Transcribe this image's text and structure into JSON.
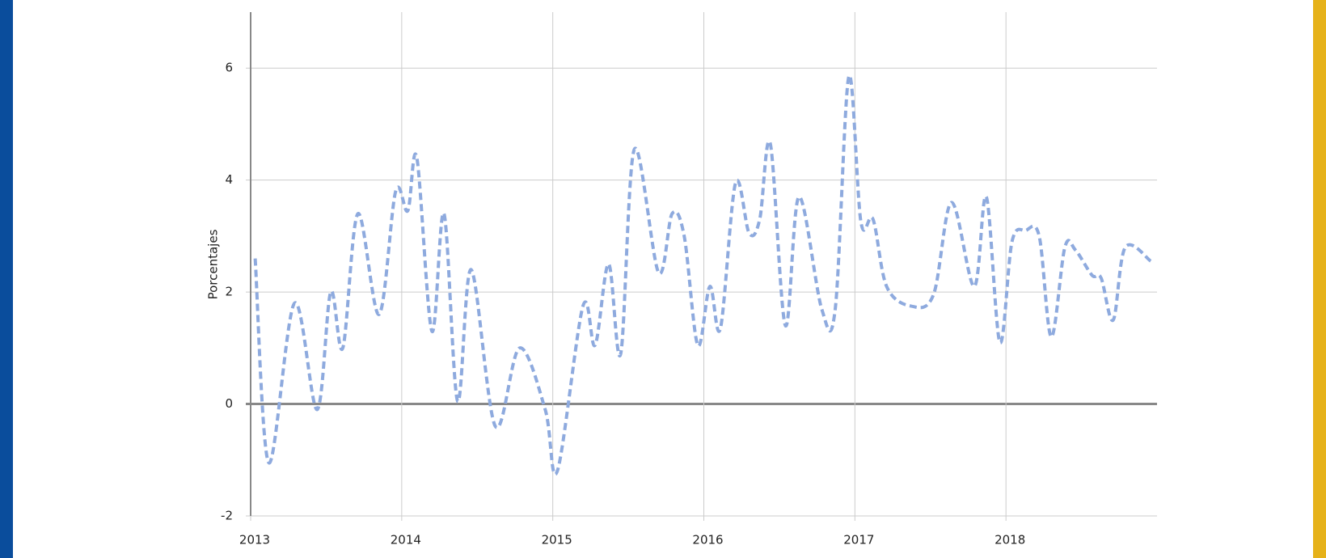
{
  "chart_data": {
    "type": "line",
    "ylabel": "Porcentajes",
    "x": [
      2013.03,
      2013.12,
      2013.29,
      2013.44,
      2013.53,
      2013.61,
      2013.71,
      2013.85,
      2013.96,
      2014.04,
      2014.1,
      2014.2,
      2014.28,
      2014.37,
      2014.46,
      2014.62,
      2014.78,
      2014.95,
      2015.03,
      2015.2,
      2015.28,
      2015.37,
      2015.45,
      2015.54,
      2015.7,
      2015.79,
      2015.87,
      2015.96,
      2016.04,
      2016.11,
      2016.21,
      2016.3,
      2016.37,
      2016.44,
      2016.54,
      2016.63,
      2016.78,
      2016.87,
      2016.96,
      2017.04,
      2017.12,
      2017.21,
      2017.37,
      2017.52,
      2017.64,
      2017.79,
      2017.87,
      2017.96,
      2018.04,
      2018.13,
      2018.22,
      2018.3,
      2018.39,
      2018.46,
      2018.57,
      2018.63,
      2018.71,
      2018.79,
      2018.96
    ],
    "series": [
      {
        "color": "#8eaade",
        "dashed": true,
        "values": [
          2.6,
          -1.05,
          1.8,
          -0.1,
          2.0,
          1.0,
          3.4,
          1.6,
          3.8,
          3.45,
          4.4,
          1.3,
          3.4,
          0.05,
          2.4,
          -0.4,
          1.0,
          -0.1,
          -1.2,
          1.75,
          1.05,
          2.5,
          0.9,
          4.55,
          2.35,
          3.4,
          3.0,
          1.05,
          2.1,
          1.35,
          3.95,
          3.05,
          3.3,
          4.65,
          1.4,
          3.7,
          1.7,
          1.7,
          5.85,
          3.25,
          3.3,
          2.1,
          1.75,
          1.95,
          3.6,
          2.1,
          3.7,
          1.1,
          2.9,
          3.1,
          3.0,
          1.2,
          2.8,
          2.75,
          2.3,
          2.25,
          1.5,
          2.8,
          2.55
        ]
      }
    ],
    "xlim": [
      2013,
      2019
    ],
    "xticks": [
      2013,
      2014,
      2015,
      2016,
      2017,
      2018
    ],
    "ylim": [
      -2,
      7
    ],
    "yticks": [
      -2,
      0,
      2,
      4,
      6
    ],
    "grid": true
  }
}
